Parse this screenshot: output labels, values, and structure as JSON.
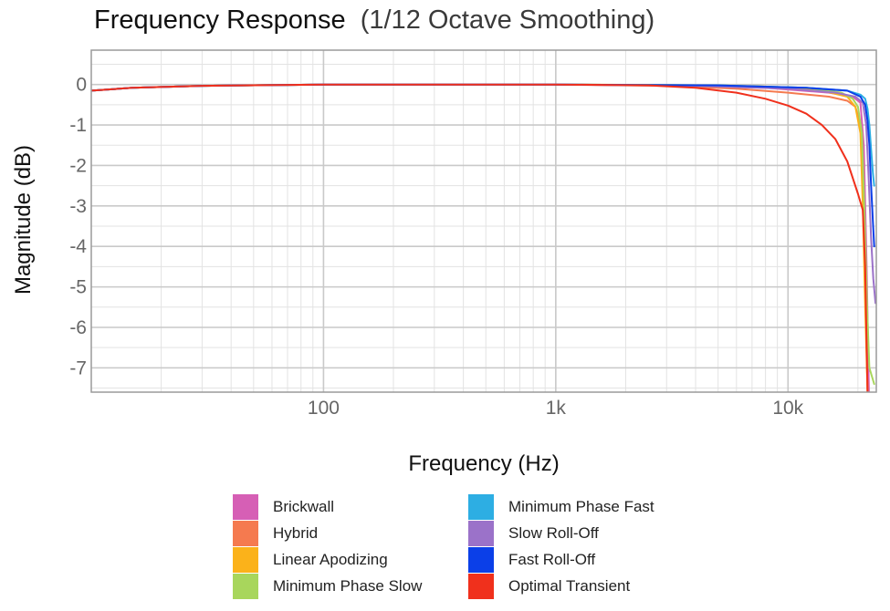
{
  "chart_data": {
    "type": "line",
    "title": "Frequency Response",
    "subtitle": "(1/12 Octave Smoothing)",
    "xlabel": "Frequency (Hz)",
    "ylabel": "Magnitude (dB)",
    "xscale": "log",
    "xlim": [
      10,
      24000
    ],
    "ylim": [
      -7.6,
      0.85
    ],
    "grid": true,
    "legend_position": "bottom",
    "x_ticks": [
      {
        "value": 100,
        "label": "100"
      },
      {
        "value": 1000,
        "label": "1k"
      },
      {
        "value": 10000,
        "label": "10k"
      }
    ],
    "y_ticks": [
      {
        "value": 0,
        "label": "0"
      },
      {
        "value": -1,
        "label": "-1"
      },
      {
        "value": -2,
        "label": "-2"
      },
      {
        "value": -3,
        "label": "-3"
      },
      {
        "value": -4,
        "label": "-4"
      },
      {
        "value": -5,
        "label": "-5"
      },
      {
        "value": -6,
        "label": "-6"
      },
      {
        "value": -7,
        "label": "-7"
      }
    ],
    "series": [
      {
        "name": "Brickwall",
        "color": "#d65fb5",
        "x": [
          10,
          15,
          30,
          100,
          1000,
          3000,
          8000,
          15000,
          19000,
          20500,
          21200,
          21800,
          22300
        ],
        "y": [
          -0.15,
          -0.08,
          -0.03,
          0,
          0,
          -0.02,
          -0.08,
          -0.2,
          -0.3,
          -0.45,
          -1.5,
          -4.5,
          -7.6
        ]
      },
      {
        "name": "Hybrid",
        "color": "#f57a4f",
        "x": [
          10,
          15,
          30,
          100,
          1000,
          3000,
          6000,
          10000,
          15000,
          18000,
          19500,
          20500,
          21200,
          21700,
          22000
        ],
        "y": [
          -0.15,
          -0.08,
          -0.03,
          0,
          0,
          -0.03,
          -0.1,
          -0.2,
          -0.3,
          -0.4,
          -0.55,
          -1.0,
          -3.0,
          -6.0,
          -7.6
        ]
      },
      {
        "name": "Linear Apodizing",
        "color": "#fbb21a",
        "x": [
          10,
          15,
          30,
          100,
          1000,
          3000,
          8000,
          14000,
          18000,
          19500,
          20500,
          21000,
          21500,
          22000
        ],
        "y": [
          -0.15,
          -0.08,
          -0.03,
          0,
          0,
          -0.01,
          -0.05,
          -0.15,
          -0.3,
          -0.55,
          -1.2,
          -3.0,
          -5.5,
          -7.6
        ]
      },
      {
        "name": "Minimum Phase Slow",
        "color": "#a8d65c",
        "x": [
          10,
          15,
          30,
          100,
          1000,
          5000,
          12000,
          17000,
          19000,
          20000,
          20800,
          21300,
          21900,
          22400,
          23500
        ],
        "y": [
          -0.15,
          -0.08,
          -0.03,
          0,
          0,
          -0.02,
          -0.08,
          -0.2,
          -0.35,
          -0.55,
          -1.2,
          -3.0,
          -5.5,
          -7.0,
          -7.4
        ]
      },
      {
        "name": "Minimum Phase Fast",
        "color": "#2daee3",
        "x": [
          10,
          15,
          30,
          100,
          1000,
          5000,
          12000,
          18000,
          20500,
          21500,
          22000,
          22400,
          22800,
          23200,
          23500
        ],
        "y": [
          -0.15,
          -0.08,
          -0.03,
          0,
          0,
          -0.02,
          -0.08,
          -0.15,
          -0.25,
          -0.35,
          -0.6,
          -1.0,
          -1.6,
          -2.2,
          -2.5
        ]
      },
      {
        "name": "Slow Roll-Off",
        "color": "#9b72c9",
        "x": [
          10,
          15,
          30,
          100,
          1000,
          4000,
          10000,
          16000,
          19500,
          21000,
          21700,
          22200,
          22800,
          23300,
          23800
        ],
        "y": [
          -0.15,
          -0.08,
          -0.03,
          0,
          0,
          -0.03,
          -0.1,
          -0.2,
          -0.3,
          -0.45,
          -1.0,
          -2.2,
          -3.8,
          -4.8,
          -5.4
        ]
      },
      {
        "name": "Fast Roll-Off",
        "color": "#0b3fe8",
        "x": [
          10,
          15,
          30,
          100,
          1000,
          5000,
          12000,
          18000,
          20500,
          21500,
          22000,
          22400,
          22800,
          23200,
          23500
        ],
        "y": [
          -0.15,
          -0.08,
          -0.03,
          0,
          0,
          -0.02,
          -0.08,
          -0.15,
          -0.3,
          -0.5,
          -0.9,
          -1.5,
          -2.5,
          -3.4,
          -4.0
        ]
      },
      {
        "name": "Optimal Transient",
        "color": "#f0301c",
        "x": [
          10,
          15,
          30,
          100,
          1000,
          2500,
          4000,
          6000,
          8000,
          10000,
          12000,
          14000,
          16000,
          18000,
          20000,
          21000,
          21500,
          21800,
          22000
        ],
        "y": [
          -0.15,
          -0.08,
          -0.03,
          0,
          0,
          -0.02,
          -0.08,
          -0.2,
          -0.35,
          -0.52,
          -0.72,
          -1.0,
          -1.35,
          -1.9,
          -2.7,
          -3.1,
          -4.5,
          -6.5,
          -7.6
        ]
      }
    ]
  }
}
